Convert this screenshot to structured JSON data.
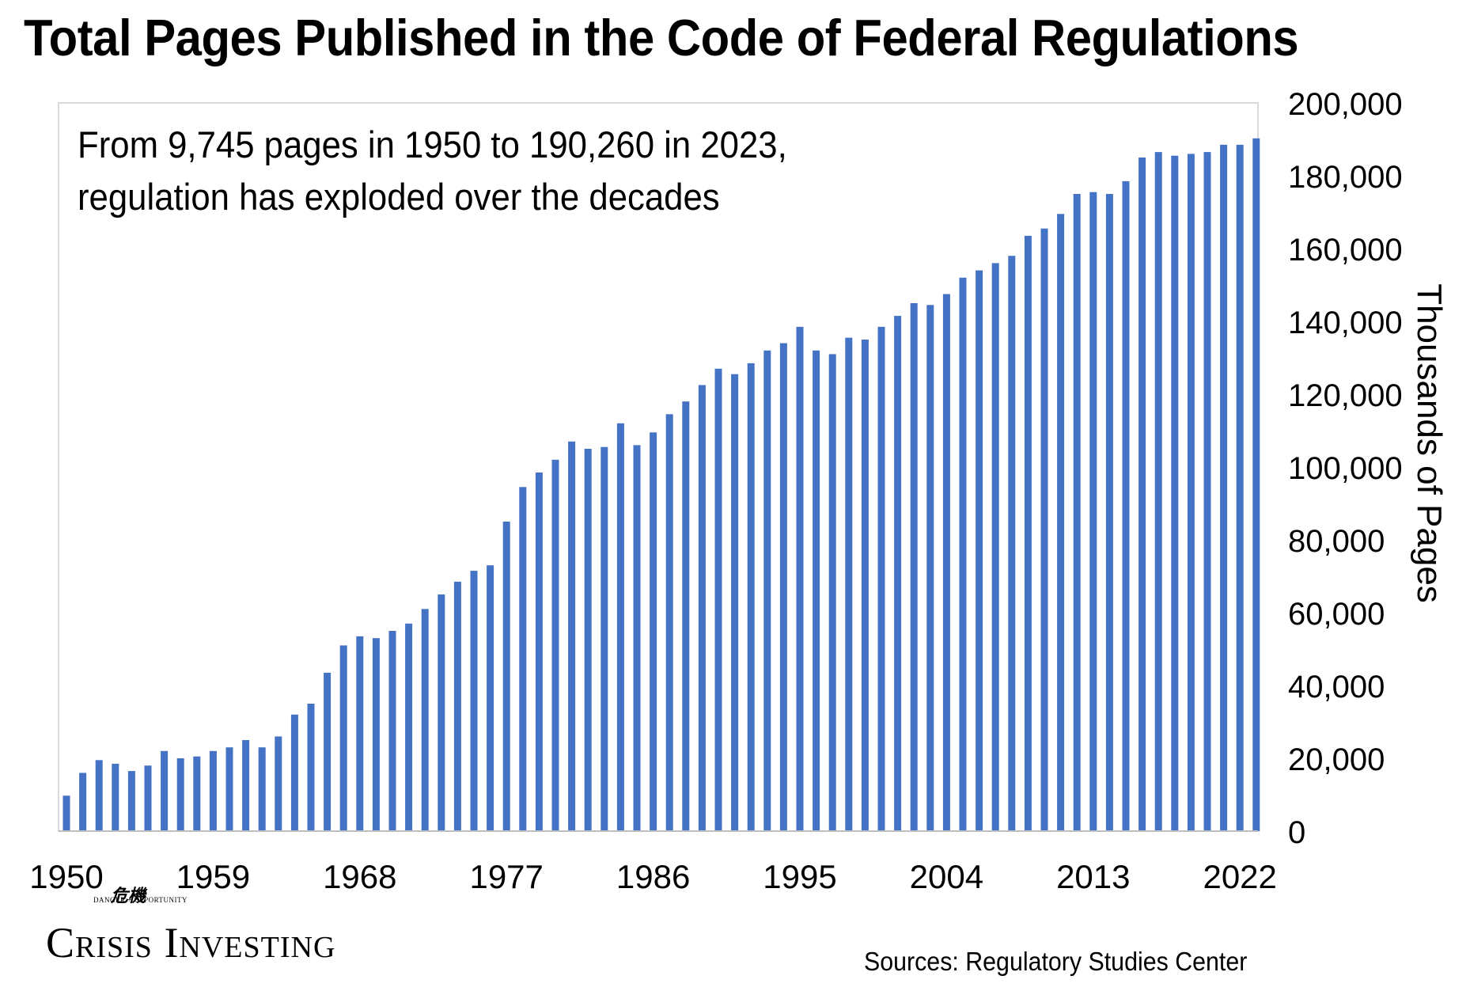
{
  "title": "Total Pages Published in the Code of Federal Regulations",
  "annotation": {
    "line1": "From 9,745 pages in 1950 to 190,260 in 2023,",
    "line2": "regulation has exploded over the decades"
  },
  "source": "Sources: Regulatory Studies Center",
  "logo": {
    "name": "Crisis Investing",
    "tagline": "DANGER + OPPORTUNITY",
    "glyph": "危機"
  },
  "colors": {
    "bar": "#4472C4",
    "plot_border": "#d9d9d9",
    "axis": "#bfbfbf"
  },
  "chart_data": {
    "type": "bar",
    "title": "Total Pages Published in the Code of Federal Regulations",
    "ylabel": "Thousands of Pages",
    "ylim": [
      0,
      200000
    ],
    "y_ticks": [
      0,
      20000,
      40000,
      60000,
      80000,
      100000,
      120000,
      140000,
      160000,
      180000,
      200000
    ],
    "y_tick_labels": [
      "0",
      "20,000",
      "40,000",
      "60,000",
      "80,000",
      "100,000",
      "120,000",
      "140,000",
      "160,000",
      "180,000",
      "200,000"
    ],
    "y_axis_side": "right",
    "x_tick_labels": [
      "1950",
      "1959",
      "1968",
      "1977",
      "1986",
      "1995",
      "2004",
      "2013",
      "2022"
    ],
    "grid": false,
    "categories": [
      1950,
      1951,
      1952,
      1953,
      1954,
      1955,
      1956,
      1957,
      1958,
      1959,
      1960,
      1961,
      1962,
      1963,
      1964,
      1965,
      1966,
      1967,
      1968,
      1969,
      1970,
      1971,
      1972,
      1973,
      1974,
      1975,
      1976,
      1977,
      1978,
      1979,
      1980,
      1981,
      1982,
      1983,
      1984,
      1985,
      1986,
      1987,
      1988,
      1989,
      1990,
      1991,
      1992,
      1993,
      1994,
      1995,
      1996,
      1997,
      1998,
      1999,
      2000,
      2001,
      2002,
      2003,
      2004,
      2005,
      2006,
      2007,
      2008,
      2009,
      2010,
      2011,
      2012,
      2013,
      2014,
      2015,
      2016,
      2017,
      2018,
      2019,
      2020,
      2021,
      2022,
      2023
    ],
    "values": [
      9745,
      16000,
      19500,
      18500,
      16500,
      18000,
      22000,
      20000,
      20500,
      22000,
      23000,
      25000,
      23000,
      26000,
      32000,
      35000,
      43500,
      51000,
      53500,
      53000,
      55000,
      57000,
      61000,
      65000,
      68500,
      71500,
      73000,
      85000,
      94500,
      98500,
      102000,
      107000,
      105000,
      105500,
      112000,
      106000,
      109500,
      114500,
      118000,
      122500,
      127000,
      125500,
      128500,
      132000,
      134000,
      138500,
      132000,
      131000,
      135500,
      135000,
      138500,
      141500,
      145000,
      144500,
      147500,
      152000,
      154000,
      156000,
      158000,
      163500,
      165500,
      169500,
      175000,
      175500,
      175000,
      178500,
      185000,
      186500,
      185500,
      186000,
      186500,
      188500,
      188500,
      190260
    ]
  }
}
